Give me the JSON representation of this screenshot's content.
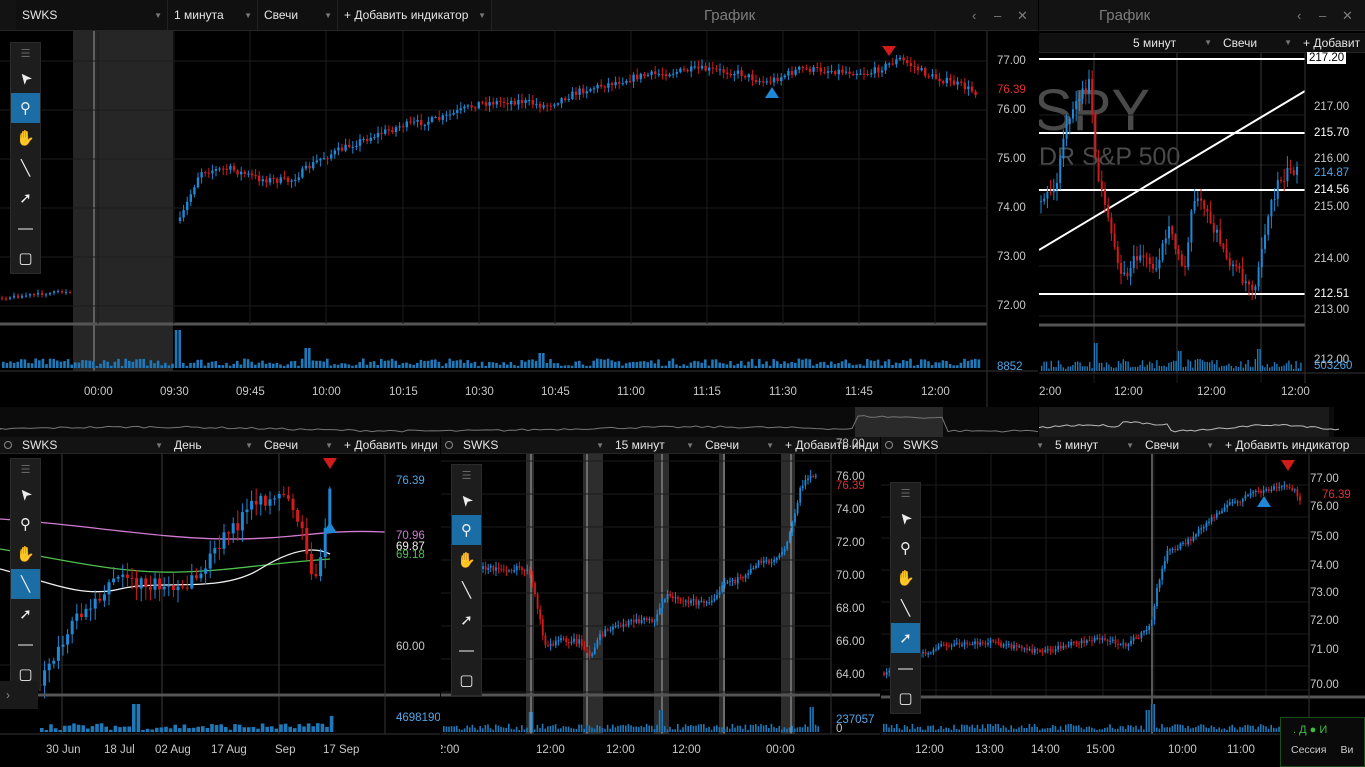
{
  "colors": {
    "up": "#1e88d6",
    "down": "#d21c1c",
    "accent": "#1b6da6",
    "sma_violet": "#d27bd2",
    "sma_white": "#f0f0f0",
    "sma_green": "#4fc04f"
  },
  "toolbar_icons": [
    "cursor-arrow-icon",
    "zoom-icon",
    "hand-pan-icon",
    "line-tool-icon",
    "ray-arrow-icon",
    "hline-tool-icon",
    "rectangle-tool-icon"
  ],
  "main": {
    "symbol": "SWKS",
    "interval": "1 минута",
    "type": "Свечи",
    "add_indicator": "+ Добавить индикатор",
    "window_title": "График",
    "price_ticks": [
      "77.00",
      "76.00",
      "75.00",
      "74.00",
      "73.00",
      "72.00"
    ],
    "last_price": "76.39",
    "volume_label": "8852",
    "time_ticks": [
      "00:00",
      "09:30",
      "09:45",
      "10:00",
      "10:15",
      "10:30",
      "10:45",
      "11:00",
      "11:15",
      "11:30",
      "11:45",
      "12:00"
    ]
  },
  "spy": {
    "window_title": "График",
    "interval": "5 минут",
    "type": "Свечи",
    "add_indicator": "+ Добавит",
    "watermark_symbol": "SPY",
    "watermark_name": "DR S&P 500",
    "price_ticks": [
      "217.00",
      "216.00",
      "215.00",
      "214.00",
      "213.00",
      "212.00"
    ],
    "hline_labels": [
      "217.20",
      "215.70",
      "214.56",
      "212.51"
    ],
    "last_price": "214.87",
    "volume_label": "503260",
    "time_ticks": [
      "2:00",
      "12:00",
      "12:00",
      "12:00"
    ]
  },
  "daily": {
    "symbol": "SWKS",
    "interval": "День",
    "type": "Свечи",
    "add_indicator": "+ Добавить инди",
    "last_price": "76.39",
    "sma1": "70.96",
    "sma2": "69.87",
    "sma3": "69.18",
    "price_ticks": [
      "60.00"
    ],
    "volume_label": "4698190",
    "time_ticks": [
      "30 Jun",
      "18 Jul",
      "02 Aug",
      "17 Aug",
      "Sep",
      "17 Sep"
    ]
  },
  "m15": {
    "symbol": "SWKS",
    "interval": "15 минут",
    "type": "Свечи",
    "add_indicator": "+ Добавить инди",
    "last_price": "76.39",
    "price_ticks": [
      "78.00",
      "76.00",
      "74.00",
      "72.00",
      "70.00",
      "68.00",
      "66.00",
      "64.00"
    ],
    "volume_label": "237057",
    "volume_zero": "0",
    "time_ticks": [
      "2:00",
      "12:00",
      "12:00",
      "12:00",
      "00:00"
    ]
  },
  "m5": {
    "symbol": "SWKS",
    "interval": "5 минут",
    "type": "Свечи",
    "add_indicator": "+ Добавить индикатор",
    "last_price": "76.39",
    "price_ticks": [
      "77.00",
      "76.00",
      "75.00",
      "74.00",
      "73.00",
      "72.00",
      "71.00",
      "70.00"
    ],
    "time_ticks": [
      "12:00",
      "13:00",
      "14:00",
      "15:00",
      "10:00",
      "11:00"
    ]
  },
  "widget": {
    "session": "Сессия",
    "vi": "Ви",
    "dots": ". Д ● И"
  }
}
